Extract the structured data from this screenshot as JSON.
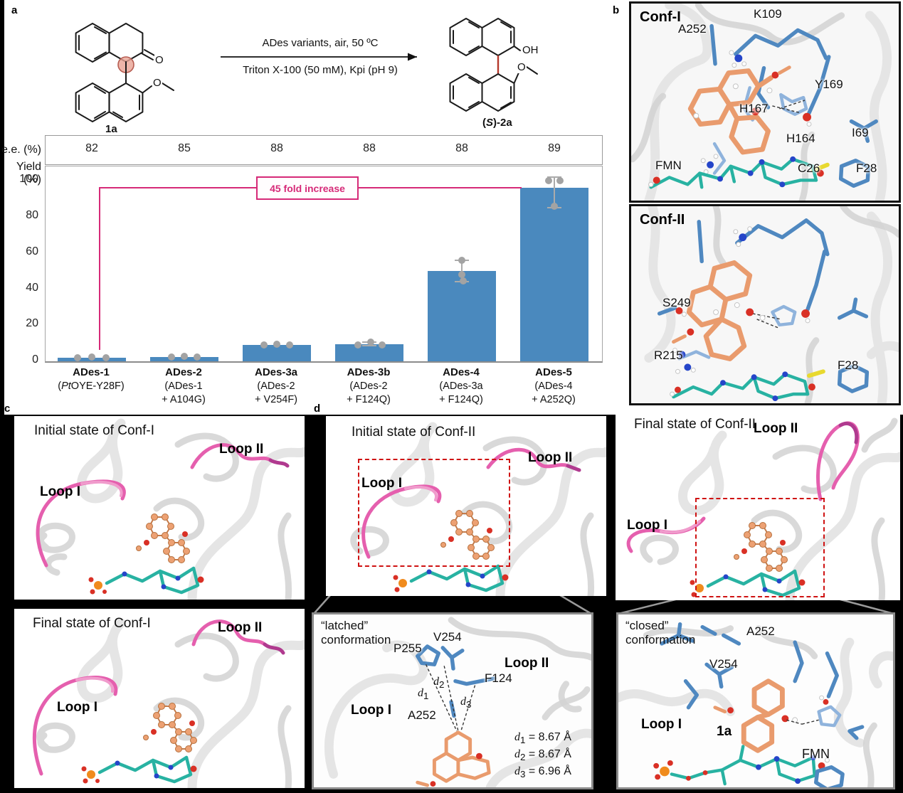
{
  "figure": {
    "panel_a_label": "a",
    "panel_b_label": "b",
    "panel_c_label": "c",
    "panel_d_label": "d"
  },
  "reaction": {
    "substrate": "1a",
    "product": "(S)-2a",
    "conditions_line1": "ADes variants, air, 50 ºC",
    "conditions_line2": "Triton X-100 (50 mM), Kpi (pH 9)",
    "oh_label": "OH",
    "o_label": "O"
  },
  "chart_data": {
    "type": "bar",
    "ee_row_label": "e.e. (%)",
    "ylabel": "Yield (%)",
    "ee_values": [
      82,
      85,
      88,
      88,
      88,
      89
    ],
    "categories": [
      "ADes-1",
      "ADes-2",
      "ADes-3a",
      "ADes-3b",
      "ADes-4",
      "ADes-5"
    ],
    "category_subs": [
      "(PtOYE-Y28F)",
      "(ADes-1\n+ A104G)",
      "(ADes-2\n+ V254F)",
      "(ADes-2\n+ F124Q)",
      "(ADes-3a\n+ F124Q)",
      "(ADes-4\n+ A252Q)"
    ],
    "values": [
      2,
      2.5,
      9,
      9.5,
      50,
      96
    ],
    "scatter": [
      [
        [
          -20,
          2
        ],
        [
          0,
          2.3
        ],
        [
          20,
          2
        ]
      ],
      [
        [
          -18,
          2.5
        ],
        [
          0,
          2.8
        ],
        [
          18,
          2.5
        ]
      ],
      [
        [
          -18,
          9
        ],
        [
          0,
          9.3
        ],
        [
          18,
          9
        ]
      ],
      [
        [
          -16,
          9
        ],
        [
          2,
          10.5
        ],
        [
          18,
          9
        ]
      ],
      [
        [
          0,
          56
        ],
        [
          0,
          48
        ],
        [
          2,
          44.5
        ]
      ],
      [
        [
          -8,
          100
        ],
        [
          8,
          100
        ],
        [
          0,
          86
        ]
      ]
    ],
    "error_ranges": [
      null,
      null,
      null,
      [
        8.8,
        10.8
      ],
      [
        44,
        56
      ],
      [
        85,
        102
      ]
    ],
    "yticks": [
      0,
      20,
      40,
      60,
      80,
      100
    ],
    "ylim": [
      0,
      108
    ],
    "grid": false,
    "annotation": "45 fold increase",
    "bar_color": "#4A89BE",
    "accent_color": "#D62A78"
  },
  "panel_b": {
    "conf1": {
      "title": "Conf-I",
      "labels": [
        "A252",
        "K109",
        "Y169",
        "H167",
        "H164",
        "I69",
        "FMN",
        "C26",
        "F28"
      ]
    },
    "conf2": {
      "title": "Conf-II",
      "labels": [
        "S249",
        "R215",
        "F28"
      ]
    }
  },
  "panel_c": {
    "top": {
      "title": "Initial state of Conf-I",
      "loop1": "Loop I",
      "loop2": "Loop II"
    },
    "bottom": {
      "title": "Final state of Conf-I",
      "loop1": "Loop I",
      "loop2": "Loop II"
    }
  },
  "panel_d": {
    "initial": {
      "title": "Initial state of Conf-II",
      "loop1": "Loop I",
      "loop2": "Loop II"
    },
    "final": {
      "title": "Final state of Conf-II",
      "loop1": "Loop I",
      "loop2": "Loop II"
    },
    "latched": {
      "title_line1": "“latched”",
      "title_line2": "conformation",
      "loop1": "Loop I",
      "loop2": "Loop II",
      "residues": [
        "P255",
        "V254",
        "F124",
        "A252"
      ],
      "distances": [
        {
          "sym": "d",
          "sub": "1",
          "val": "= 8.67 Å"
        },
        {
          "sym": "d",
          "sub": "2",
          "val": "= 8.67 Å"
        },
        {
          "sym": "d",
          "sub": "3",
          "val": "= 6.96 Å"
        }
      ]
    },
    "closed": {
      "title_line1": "“closed”",
      "title_line2": "conformation",
      "loop1": "Loop I",
      "residues": [
        "A252",
        "V254"
      ],
      "ligand": "1a",
      "cofactor": "FMN"
    }
  }
}
